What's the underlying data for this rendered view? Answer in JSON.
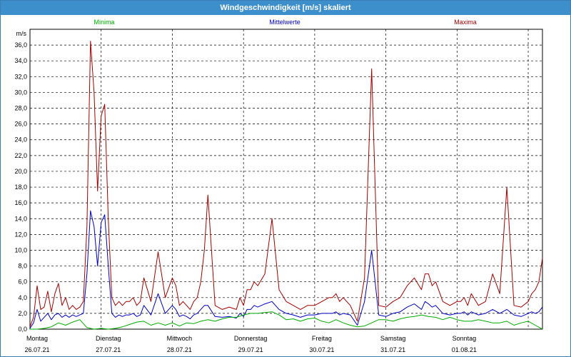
{
  "window": {
    "title": "Windgeschwindigkeit [m/s] skaliert"
  },
  "colors": {
    "min": "#00aa00",
    "mean": "#0000c0",
    "max": "#a00000",
    "grid": "#000000"
  },
  "chart_data": {
    "type": "line",
    "title": "Windgeschwindigkeit [m/s] skaliert",
    "ylabel": "m/s",
    "ylim": [
      0,
      38
    ],
    "x_range": [
      0,
      7.2
    ],
    "yticks": [
      "0,0",
      "2,0",
      "4,0",
      "6,0",
      "8,0",
      "10,0",
      "12,0",
      "14,0",
      "16,0",
      "18,0",
      "20,0",
      "22,0",
      "24,0",
      "26,0",
      "28,0",
      "30,0",
      "32,0",
      "34,0",
      "36,0"
    ],
    "ytick_values": [
      0,
      2,
      4,
      6,
      8,
      10,
      12,
      14,
      16,
      18,
      20,
      22,
      24,
      26,
      28,
      30,
      32,
      34,
      36
    ],
    "days": [
      {
        "weekday": "Montag",
        "date": "26.07.21"
      },
      {
        "weekday": "Dienstag",
        "date": "27.07.21"
      },
      {
        "weekday": "Mittwoch",
        "date": "28.07.21"
      },
      {
        "weekday": "Donnerstag",
        "date": "29.07.21"
      },
      {
        "weekday": "Freitag",
        "date": "30.07.21"
      },
      {
        "weekday": "Samstag",
        "date": "31.07.21"
      },
      {
        "weekday": "Sonntag",
        "date": "01.08.21"
      }
    ],
    "legend": {
      "min": "Minima",
      "mean": "Mittelwerte",
      "max": "Maxima"
    },
    "series": [
      {
        "name": "Maxima",
        "x": [
          0,
          0.05,
          0.1,
          0.15,
          0.2,
          0.25,
          0.3,
          0.35,
          0.4,
          0.45,
          0.5,
          0.55,
          0.6,
          0.65,
          0.7,
          0.75,
          0.8,
          0.85,
          0.9,
          0.95,
          1.0,
          1.05,
          1.1,
          1.15,
          1.2,
          1.25,
          1.3,
          1.35,
          1.4,
          1.45,
          1.5,
          1.55,
          1.6,
          1.7,
          1.8,
          1.9,
          2.0,
          2.05,
          2.1,
          2.15,
          2.2,
          2.25,
          2.3,
          2.35,
          2.4,
          2.45,
          2.5,
          2.6,
          2.7,
          2.8,
          2.9,
          2.95,
          3.0,
          3.05,
          3.1,
          3.15,
          3.2,
          3.3,
          3.4,
          3.5,
          3.6,
          3.7,
          3.8,
          3.9,
          4.0,
          4.1,
          4.2,
          4.25,
          4.3,
          4.35,
          4.4,
          4.5,
          4.6,
          4.7,
          4.8,
          4.9,
          5.0,
          5.1,
          5.2,
          5.3,
          5.4,
          5.5,
          5.55,
          5.6,
          5.65,
          5.7,
          5.8,
          5.9,
          6.0,
          6.05,
          6.1,
          6.15,
          6.2,
          6.3,
          6.4,
          6.5,
          6.6,
          6.7,
          6.8,
          6.9,
          7.0,
          7.05,
          7.1,
          7.15,
          7.2
        ],
        "values": [
          0.3,
          1.5,
          5.5,
          2.5,
          2.8,
          4.8,
          2.2,
          4.5,
          5.8,
          3.0,
          4.0,
          2.5,
          3.0,
          2.5,
          2.8,
          3.5,
          13.0,
          36.5,
          30.0,
          17.5,
          27.0,
          28.5,
          14.0,
          4.0,
          3.0,
          3.5,
          3.0,
          3.5,
          3.5,
          4.0,
          3.0,
          3.5,
          6.5,
          3.5,
          9.8,
          4.0,
          6.5,
          5.5,
          3.0,
          3.5,
          3.0,
          2.5,
          3.5,
          4.0,
          6.0,
          10.0,
          17.0,
          3.0,
          2.5,
          2.8,
          2.5,
          4.0,
          3.0,
          5.0,
          5.0,
          6.0,
          5.5,
          7.0,
          14.0,
          5.0,
          3.5,
          3.0,
          2.5,
          3.0,
          3.0,
          3.5,
          4.0,
          4.0,
          4.5,
          3.5,
          4.0,
          3.0,
          1.0,
          6.5,
          33.0,
          3.0,
          2.8,
          3.5,
          4.0,
          5.5,
          6.5,
          5.0,
          7.0,
          7.0,
          5.5,
          6.0,
          3.5,
          3.0,
          3.5,
          3.5,
          4.0,
          3.0,
          4.5,
          3.0,
          3.5,
          7.0,
          4.5,
          18.0,
          3.0,
          2.8,
          3.5,
          4.5,
          5.0,
          6.0,
          9.0
        ]
      },
      {
        "name": "Mittelwerte",
        "x": [
          0,
          0.05,
          0.1,
          0.15,
          0.2,
          0.25,
          0.3,
          0.35,
          0.4,
          0.45,
          0.5,
          0.55,
          0.6,
          0.65,
          0.7,
          0.75,
          0.8,
          0.85,
          0.9,
          0.95,
          1.0,
          1.05,
          1.1,
          1.15,
          1.2,
          1.25,
          1.3,
          1.35,
          1.4,
          1.45,
          1.5,
          1.55,
          1.6,
          1.7,
          1.8,
          1.9,
          2.0,
          2.05,
          2.1,
          2.15,
          2.2,
          2.25,
          2.3,
          2.35,
          2.4,
          2.45,
          2.5,
          2.6,
          2.7,
          2.8,
          2.9,
          2.95,
          3.0,
          3.05,
          3.1,
          3.15,
          3.2,
          3.3,
          3.4,
          3.5,
          3.6,
          3.7,
          3.8,
          3.9,
          4.0,
          4.1,
          4.2,
          4.25,
          4.3,
          4.35,
          4.4,
          4.5,
          4.6,
          4.7,
          4.8,
          4.9,
          5.0,
          5.1,
          5.2,
          5.3,
          5.4,
          5.5,
          5.55,
          5.6,
          5.65,
          5.7,
          5.8,
          5.9,
          6.0,
          6.05,
          6.1,
          6.15,
          6.2,
          6.3,
          6.4,
          6.5,
          6.6,
          6.7,
          6.8,
          6.9,
          7.0,
          7.05,
          7.1,
          7.15,
          7.2
        ],
        "values": [
          0.1,
          0.8,
          2.5,
          1.0,
          1.5,
          2.0,
          1.2,
          1.8,
          2.0,
          1.5,
          1.8,
          1.5,
          1.8,
          1.6,
          1.8,
          2.0,
          7.0,
          15.0,
          13.0,
          8.0,
          13.5,
          14.5,
          8.0,
          2.0,
          1.5,
          1.8,
          1.6,
          1.8,
          1.8,
          2.0,
          1.6,
          1.8,
          3.0,
          1.8,
          4.5,
          2.0,
          3.0,
          2.5,
          1.6,
          1.8,
          1.6,
          1.3,
          1.8,
          2.0,
          2.5,
          3.0,
          3.0,
          1.6,
          1.5,
          1.6,
          1.4,
          2.0,
          1.6,
          2.5,
          2.5,
          3.0,
          2.8,
          3.2,
          3.5,
          2.5,
          2.0,
          1.8,
          1.5,
          1.8,
          1.8,
          2.0,
          2.0,
          2.0,
          2.2,
          1.8,
          2.0,
          1.8,
          0.5,
          3.5,
          10.0,
          1.8,
          1.6,
          2.0,
          2.2,
          2.8,
          3.2,
          2.5,
          3.5,
          3.2,
          2.8,
          3.0,
          2.0,
          1.8,
          2.0,
          2.0,
          2.2,
          1.8,
          2.2,
          1.8,
          2.0,
          2.5,
          2.0,
          2.5,
          1.8,
          1.6,
          2.0,
          2.2,
          2.0,
          2.2,
          2.8
        ]
      },
      {
        "name": "Minima",
        "x": [
          0,
          0.1,
          0.2,
          0.3,
          0.4,
          0.5,
          0.6,
          0.7,
          0.8,
          0.9,
          1.0,
          1.1,
          1.2,
          1.3,
          1.4,
          1.5,
          1.6,
          1.7,
          1.8,
          1.9,
          2.0,
          2.1,
          2.2,
          2.3,
          2.4,
          2.5,
          2.6,
          2.7,
          2.8,
          2.9,
          3.0,
          3.1,
          3.2,
          3.3,
          3.4,
          3.5,
          3.6,
          3.7,
          3.8,
          3.9,
          4.0,
          4.1,
          4.2,
          4.3,
          4.4,
          4.5,
          4.6,
          4.7,
          4.8,
          4.9,
          5.0,
          5.1,
          5.2,
          5.3,
          5.4,
          5.5,
          5.6,
          5.7,
          5.8,
          5.9,
          6.0,
          6.1,
          6.2,
          6.3,
          6.4,
          6.5,
          6.6,
          6.7,
          6.8,
          6.9,
          7.0,
          7.1,
          7.2
        ],
        "values": [
          0.0,
          0.0,
          0.1,
          0.3,
          0.8,
          0.5,
          0.9,
          1.2,
          0.2,
          0.0,
          0.1,
          0.0,
          0.1,
          0.3,
          0.6,
          0.9,
          1.0,
          0.5,
          0.8,
          0.5,
          0.8,
          0.4,
          0.8,
          0.7,
          1.0,
          1.2,
          1.0,
          1.3,
          1.5,
          1.5,
          1.8,
          2.0,
          2.0,
          2.1,
          2.2,
          1.8,
          1.2,
          1.3,
          1.0,
          1.3,
          1.4,
          1.0,
          0.8,
          1.2,
          0.8,
          0.5,
          0.3,
          0.4,
          0.8,
          1.2,
          1.2,
          1.0,
          1.3,
          1.5,
          1.6,
          1.8,
          1.6,
          1.5,
          1.2,
          1.5,
          1.2,
          1.0,
          1.0,
          1.2,
          1.0,
          0.8,
          0.8,
          1.0,
          0.5,
          0.8,
          1.0,
          0.5,
          0.0
        ]
      }
    ]
  }
}
